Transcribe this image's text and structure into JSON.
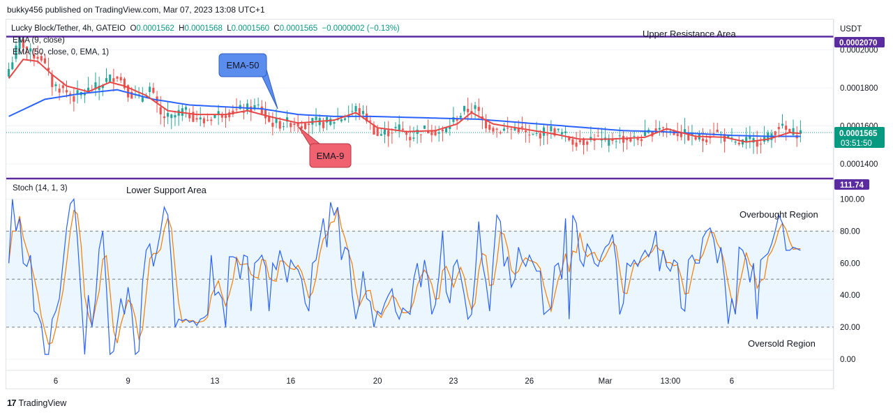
{
  "header": {
    "published": "bukky456 published on TradingView.com, Mar 07, 2023 13:08 UTC+1"
  },
  "legend": {
    "symbol": "Lucky Block/Tether, 4h, GATEIO",
    "o_label": "O",
    "o": "0.0001562",
    "h_label": "H",
    "h": "0.0001568",
    "l_label": "L",
    "l": "0.0001560",
    "c_label": "C",
    "c": "0.0001565",
    "change": "−0.0000002 (−0.13%)",
    "ema9": "EMA (9, close)",
    "ema50": "EMA (50, close, 0, EMA, 1)",
    "stoch": "Stoch (14, 1, 3)"
  },
  "annotations": {
    "upper_resistance": "Upper Resistance Area",
    "lower_support": "Lower Support Area",
    "overbought": "Overbought Region",
    "oversold": "Oversold Region",
    "ema50_callout": "EMA-50",
    "ema9_callout": "EMA-9"
  },
  "price_axis": {
    "currency": "USDT",
    "ticks": [
      "0.0002000",
      "0.0001800",
      "0.0001600",
      "0.0001400"
    ],
    "resistance_badge": "0.0002070",
    "last_price_badge": "0.0001565",
    "countdown": "03:51:50",
    "support_badge": "111.74"
  },
  "stoch_axis": {
    "ticks": [
      "100.00",
      "80.00",
      "60.00",
      "40.00",
      "20.00",
      "0.00"
    ]
  },
  "time_axis": {
    "ticks": [
      "6",
      "9",
      "13",
      "16",
      "20",
      "23",
      "26",
      "Mar",
      "13:00",
      "6"
    ]
  },
  "footer": {
    "brand": "TradingView"
  },
  "colors": {
    "up": "#26a69a",
    "down": "#ef5350",
    "ema9": "#e84545",
    "ema50": "#2962ff",
    "level_line": "#5b2ca0",
    "stoch_k": "#2962ff",
    "stoch_d": "#f57c00",
    "stoch_band": "#e3f2fd",
    "ema50_callout": "#5b8def",
    "ema9_callout": "#f0626f"
  },
  "chart_data": [
    {
      "type": "candlestick",
      "title": "Lucky Block/Tether, 4h, GATEIO",
      "y_unit": "USDT",
      "ylim": [
        0.000133,
        0.000216
      ],
      "x_ticks": [
        "6",
        "9",
        "13",
        "16",
        "20",
        "23",
        "26",
        "Mar",
        "13:00",
        "6"
      ],
      "resistance_level": 0.000207,
      "support_level": 0.00013,
      "last_close": 0.0001565,
      "close_path_knots": [
        [
          0,
          0.00019
        ],
        [
          3,
          0.000205
        ],
        [
          6,
          0.000198
        ],
        [
          9,
          0.000196
        ],
        [
          12,
          0.000182
        ],
        [
          15,
          0.000179
        ],
        [
          18,
          0.000175
        ],
        [
          21,
          0.000178
        ],
        [
          24,
          0.00018
        ],
        [
          27,
          0.000184
        ],
        [
          30,
          0.000187
        ],
        [
          33,
          0.000178
        ],
        [
          36,
          0.000174
        ],
        [
          39,
          0.00018
        ],
        [
          42,
          0.000165
        ],
        [
          45,
          0.000164
        ],
        [
          48,
          0.000168
        ],
        [
          51,
          0.000165
        ],
        [
          54,
          0.000162
        ],
        [
          57,
          0.000166
        ],
        [
          60,
          0.000167
        ],
        [
          63,
          0.000168
        ],
        [
          66,
          0.000169
        ],
        [
          69,
          0.00017
        ],
        [
          72,
          0.000162
        ],
        [
          75,
          0.000161
        ],
        [
          78,
          0.000162
        ],
        [
          81,
          0.000161
        ],
        [
          84,
          0.000162
        ],
        [
          87,
          0.0001615
        ],
        [
          90,
          0.000163
        ],
        [
          93,
          0.000165
        ],
        [
          96,
          0.000169
        ],
        [
          99,
          0.000164
        ],
        [
          102,
          0.000155
        ],
        [
          105,
          0.000157
        ],
        [
          108,
          0.000159
        ],
        [
          111,
          0.000154
        ],
        [
          114,
          0.000158
        ],
        [
          117,
          0.000158
        ],
        [
          120,
          0.000156
        ],
        [
          123,
          0.000163
        ],
        [
          126,
          0.000168
        ],
        [
          129,
          0.000169
        ],
        [
          132,
          0.000161
        ],
        [
          135,
          0.000158
        ],
        [
          138,
          0.000158
        ],
        [
          141,
          0.000159
        ],
        [
          144,
          0.000154
        ],
        [
          147,
          0.000156
        ],
        [
          150,
          0.000158
        ],
        [
          153,
          0.000156
        ],
        [
          156,
          0.000152
        ],
        [
          159,
          0.000152
        ],
        [
          162,
          0.000154
        ],
        [
          165,
          0.000151
        ],
        [
          168,
          0.000154
        ],
        [
          171,
          0.000153
        ],
        [
          174,
          0.000153
        ],
        [
          177,
          0.000156
        ],
        [
          180,
          0.00016
        ],
        [
          183,
          0.000157
        ],
        [
          186,
          0.000156
        ],
        [
          189,
          0.000154
        ],
        [
          192,
          0.000153
        ],
        [
          195,
          0.000157
        ],
        [
          198,
          0.000154
        ],
        [
          201,
          0.00015
        ],
        [
          204,
          0.000152
        ],
        [
          207,
          0.000152
        ],
        [
          210,
          0.000154
        ],
        [
          213,
          0.00016
        ],
        [
          216,
          0.000156
        ],
        [
          219,
          0.0001565
        ]
      ],
      "ema9_knots": [
        [
          0,
          0.000185
        ],
        [
          4,
          0.000195
        ],
        [
          8,
          0.000194
        ],
        [
          12,
          0.000187
        ],
        [
          16,
          0.000181
        ],
        [
          22,
          0.000178
        ],
        [
          28,
          0.000183
        ],
        [
          32,
          0.000181
        ],
        [
          38,
          0.000176
        ],
        [
          44,
          0.000168
        ],
        [
          52,
          0.000166
        ],
        [
          60,
          0.000166
        ],
        [
          66,
          0.000168
        ],
        [
          72,
          0.000165
        ],
        [
          80,
          0.0001615
        ],
        [
          90,
          0.000163
        ],
        [
          96,
          0.000167
        ],
        [
          102,
          0.000159
        ],
        [
          110,
          0.000157
        ],
        [
          118,
          0.0001575
        ],
        [
          124,
          0.000161
        ],
        [
          128,
          0.000167
        ],
        [
          134,
          0.000161
        ],
        [
          142,
          0.0001585
        ],
        [
          150,
          0.000156
        ],
        [
          158,
          0.000153
        ],
        [
          166,
          0.000153
        ],
        [
          176,
          0.000154
        ],
        [
          182,
          0.0001585
        ],
        [
          190,
          0.0001545
        ],
        [
          198,
          0.000154
        ],
        [
          204,
          0.0001515
        ],
        [
          210,
          0.000153
        ],
        [
          216,
          0.0001565
        ],
        [
          219,
          0.000156
        ]
      ],
      "ema50_knots": [
        [
          0,
          0.000165
        ],
        [
          10,
          0.000174
        ],
        [
          20,
          0.000177
        ],
        [
          30,
          0.000179
        ],
        [
          40,
          0.000174
        ],
        [
          50,
          0.000171
        ],
        [
          60,
          0.00017
        ],
        [
          70,
          0.000169
        ],
        [
          80,
          0.000166
        ],
        [
          90,
          0.000165
        ],
        [
          100,
          0.000165
        ],
        [
          110,
          0.0001645
        ],
        [
          120,
          0.000164
        ],
        [
          130,
          0.0001635
        ],
        [
          140,
          0.000162
        ],
        [
          150,
          0.0001605
        ],
        [
          160,
          0.000159
        ],
        [
          170,
          0.0001575
        ],
        [
          180,
          0.000157
        ],
        [
          190,
          0.000156
        ],
        [
          200,
          0.000155
        ],
        [
          210,
          0.0001545
        ],
        [
          219,
          0.0001545
        ]
      ]
    },
    {
      "type": "line",
      "title": "Stoch (14, 1, 3)",
      "ylim": [
        -7,
        112
      ],
      "overbought_level": 80,
      "oversold_level": 20,
      "midline": 50,
      "series": [
        {
          "values": [
            60,
            100,
            80,
            88,
            60,
            58,
            65,
            30,
            28,
            22,
            3,
            3,
            25,
            30,
            38,
            60,
            82,
            97,
            100,
            75,
            40,
            3,
            40,
            20,
            38,
            69,
            80,
            45,
            3,
            5,
            22,
            38,
            28,
            45,
            30,
            3,
            5,
            48,
            68,
            72,
            58,
            68,
            80,
            95,
            90,
            60,
            20,
            25,
            24,
            25,
            23,
            24,
            21,
            25,
            26,
            28,
            65,
            40,
            42,
            38,
            20,
            64,
            64,
            63,
            50,
            65,
            64,
            30,
            60,
            62,
            65,
            58,
            30,
            60,
            56,
            68,
            60,
            48,
            62,
            58,
            56,
            50,
            35,
            30,
            60,
            62,
            75,
            88,
            70,
            98,
            90,
            95,
            62,
            70,
            68,
            40,
            25,
            35,
            55,
            38,
            36,
            20,
            30,
            28,
            35,
            40,
            44,
            30,
            25,
            32,
            30,
            28,
            50,
            60,
            45,
            62,
            50,
            28,
            34,
            52,
            80,
            42,
            35,
            58,
            62,
            52,
            40,
            25,
            28,
            52,
            86,
            60,
            48,
            30,
            62,
            90,
            86,
            58,
            64,
            45,
            50,
            70,
            62,
            58,
            65,
            60,
            55,
            55,
            28,
            30,
            32,
            58,
            60,
            50,
            88,
            25,
            90,
            85,
            62,
            58,
            72,
            68,
            60,
            58,
            65,
            70,
            72,
            78,
            62,
            28,
            35,
            60,
            58,
            62,
            58,
            64,
            68,
            64,
            70,
            80,
            55,
            68,
            58,
            55,
            62,
            60,
            32,
            30,
            62,
            65,
            60,
            60,
            76,
            80,
            82,
            75,
            60,
            70,
            50,
            22,
            38,
            28,
            70,
            68,
            62,
            48,
            60,
            25,
            62,
            64,
            66,
            72,
            80,
            90,
            85,
            68,
            68,
            70,
            69,
            68
          ]
        }
      ]
    }
  ]
}
